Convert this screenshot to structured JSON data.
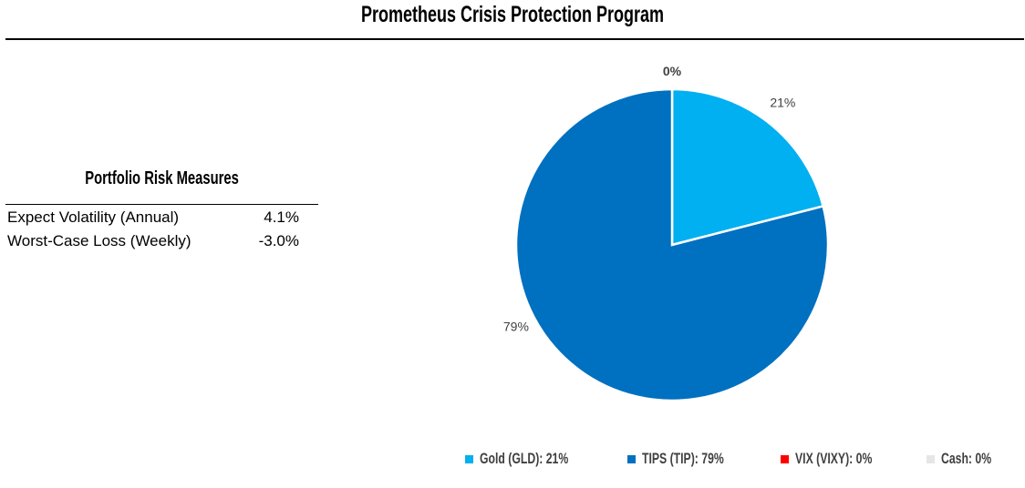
{
  "title": "Prometheus Crisis Protection Program",
  "risk": {
    "heading": "Portfolio Risk Measures",
    "rows": [
      {
        "label": "Expect Volatility (Annual)",
        "value": "4.1%"
      },
      {
        "label": "Worst-Case Loss (Weekly)",
        "value": "-3.0%"
      }
    ]
  },
  "chart_data": {
    "type": "pie",
    "title": "",
    "slices": [
      {
        "name": "Gold (GLD)",
        "value": 21,
        "label": "21%",
        "color": "#00B0F0"
      },
      {
        "name": "TIPS (TIP)",
        "value": 79,
        "label": "79%",
        "color": "#0070C0"
      },
      {
        "name": "VIX (VIXY)",
        "value": 0,
        "label": "0%",
        "color": "#FF0000"
      },
      {
        "name": "Cash",
        "value": 0,
        "label": "0%",
        "color": "#E7E6E6"
      }
    ],
    "legend": [
      {
        "text": "Gold (GLD): 21%",
        "color": "#00B0F0"
      },
      {
        "text": "TIPS (TIP): 79%",
        "color": "#0070C0"
      },
      {
        "text": "VIX (VIXY): 0%",
        "color": "#FF0000"
      },
      {
        "text": "Cash: 0%",
        "color": "#E7E6E6"
      }
    ],
    "legend_position": "bottom"
  }
}
